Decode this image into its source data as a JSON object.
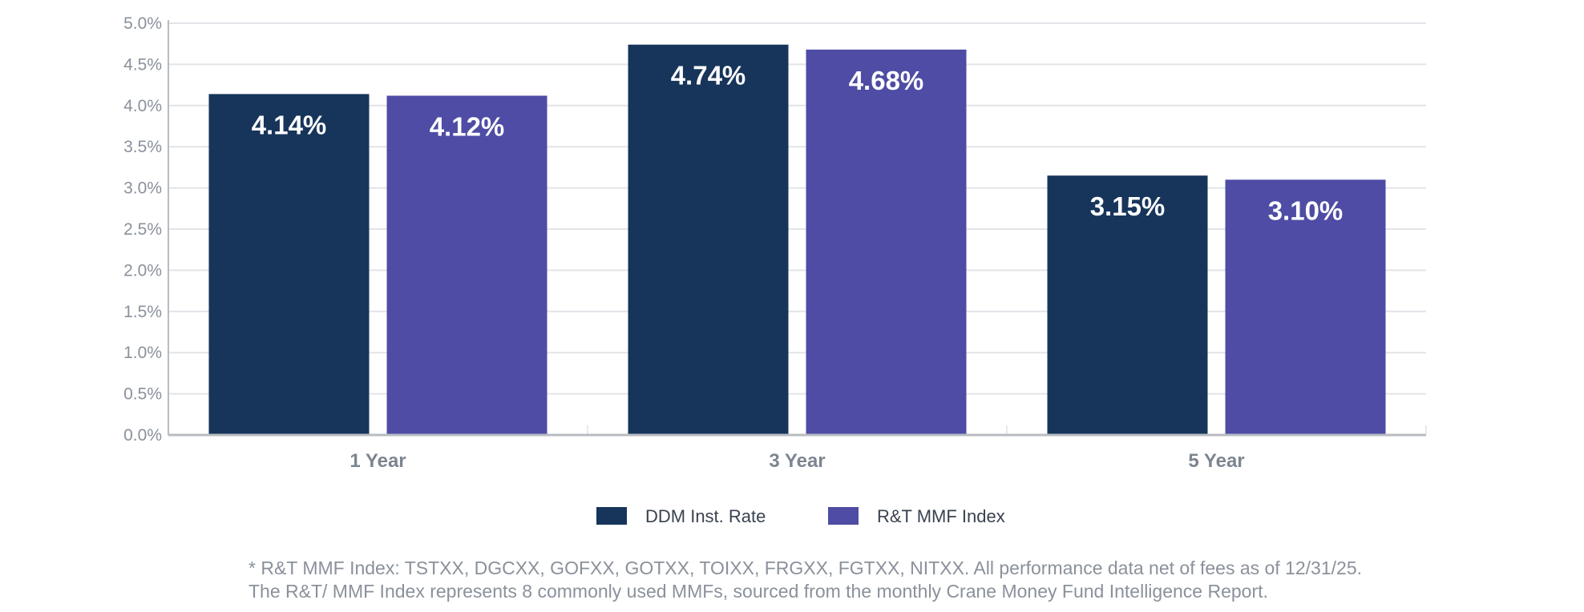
{
  "chart_data": {
    "type": "bar",
    "categories": [
      "1 Year",
      "3 Year",
      "5 Year"
    ],
    "series": [
      {
        "name": "DDM Inst. Rate",
        "values": [
          4.14,
          4.74,
          3.15
        ],
        "labels": [
          "4.14%",
          "4.74%",
          "3.15%"
        ],
        "color": "#17355a"
      },
      {
        "name": "R&T MMF Index",
        "values": [
          4.12,
          4.68,
          3.1
        ],
        "labels": [
          "4.12%",
          "4.68%",
          "3.10%"
        ],
        "color": "#4e4ca4"
      }
    ],
    "ylim": [
      0,
      5
    ],
    "yticks": [
      "0.0%",
      "0.5%",
      "1.0%",
      "1.5%",
      "2.0%",
      "2.5%",
      "3.0%",
      "3.5%",
      "4.0%",
      "4.5%",
      "5.0%"
    ],
    "grid": true,
    "legend": "bottom"
  },
  "footnote": {
    "line1": "* R&T MMF Index: TSTXX, DGCXX, GOFXX, GOTXX, TOIXX, FRGXX, FGTXX, NITXX. All performance data net of fees as of 12/31/25.",
    "line2": "The R&T/ MMF Index represents 8 commonly used MMFs, sourced from the monthly Crane Money Fund Intelligence Report."
  }
}
